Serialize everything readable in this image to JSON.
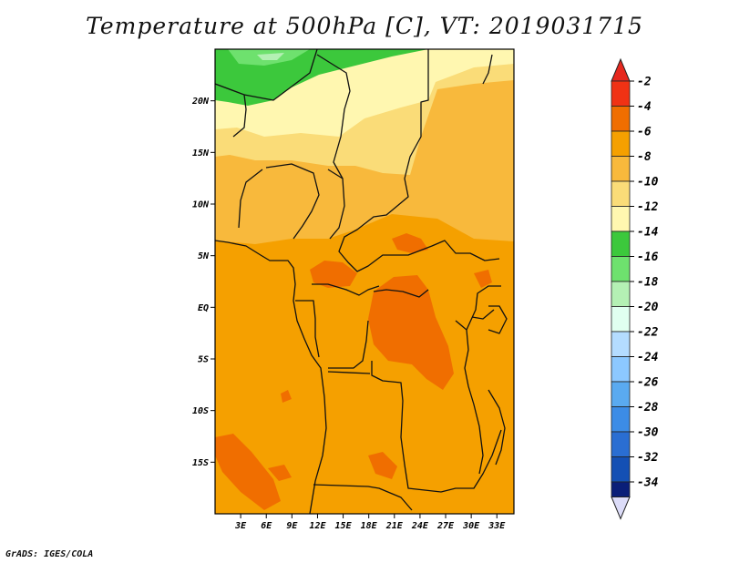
{
  "title": "Temperature at 500hPa [C], VT: 2019031715",
  "credit": "GrADS: IGES/COLA",
  "map": {
    "lon_range": [
      0,
      35
    ],
    "lat_range": [
      -20,
      25
    ],
    "lon_ticks": [
      "3E",
      "6E",
      "9E",
      "12E",
      "15E",
      "18E",
      "21E",
      "24E",
      "27E",
      "30E",
      "33E"
    ],
    "lon_tick_values": [
      3,
      6,
      9,
      12,
      15,
      18,
      21,
      24,
      27,
      30,
      33
    ],
    "lat_ticks": [
      "20N",
      "15N",
      "10N",
      "5N",
      "EQ",
      "5S",
      "10S",
      "15S"
    ],
    "lat_tick_values": [
      20,
      15,
      10,
      5,
      0,
      -5,
      -10,
      -15
    ]
  },
  "colorbar": {
    "labels": [
      "-2",
      "-4",
      "-6",
      "-8",
      "-10",
      "-12",
      "-14",
      "-16",
      "-18",
      "-20",
      "-22",
      "-24",
      "-26",
      "-28",
      "-30",
      "-32",
      "-34"
    ],
    "colors": [
      "#f03214",
      "#f06e00",
      "#f5a000",
      "#f8b93c",
      "#fadc78",
      "#fff7b0",
      "#3cc83c",
      "#6ee16e",
      "#b4f0b4",
      "#e0fff0",
      "#b4dcff",
      "#8cc8ff",
      "#5aaaf0",
      "#3c8ce6",
      "#2a6ed2",
      "#1450b4",
      "#0a1e78"
    ],
    "top_arrow_color": "#e6281e",
    "bottom_arrow_color": "#dcdcf8"
  }
}
